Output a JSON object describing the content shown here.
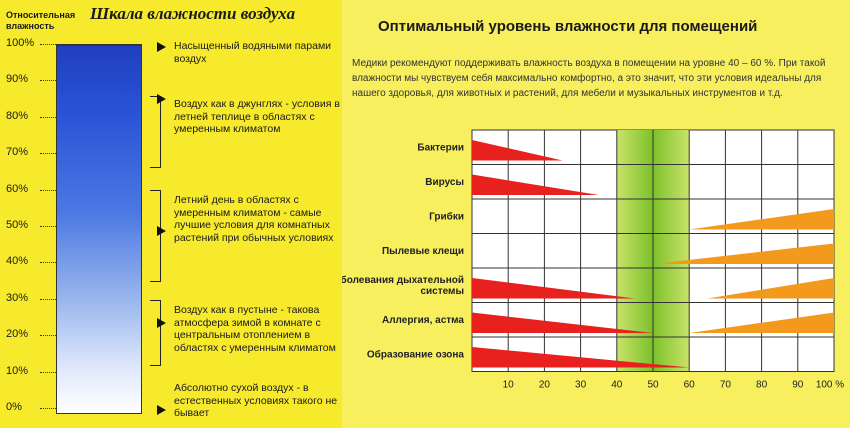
{
  "left": {
    "title": "Шкала влажности воздуха",
    "relative_label_1": "Относительная",
    "relative_label_2": "влажность",
    "ticks": [
      "100%",
      "90%",
      "80%",
      "70%",
      "60%",
      "50%",
      "40%",
      "30%",
      "20%",
      "10%",
      "0%"
    ],
    "descriptions": [
      "Насыщенный водяными парами воздух",
      "Воздух как в джунглях - условия в летней теплице в областях с умеренным климатом",
      "Летний день в областях с умеренным климатом - самые лучшие условия для комнатных растений при обычных условиях",
      "Воздух как в пустыне - такова атмосфера зимой в комнате с центральным отоплением в областях с умеренным климатом",
      "Абсолютно сухой воздух - в естественных условиях такого не бывает"
    ],
    "bar_top_percent": 100,
    "bar_color_top": "#1f3fbf"
  },
  "right": {
    "title": "Оптимальный уровень влажности для помещений",
    "intro": "Медики рекомендуют поддерживать влажность воздуха в помещении на уровне 40 – 60 %. При такой влажности мы чувствуем себя максимально комфортно, а это значит, что эти условия идеальны для нашего здоровья, для животных и растений, для мебели и музыкальных инструментов и т.д."
  },
  "chart_data": {
    "type": "table",
    "x_ticks": [
      "10",
      "20",
      "30",
      "40",
      "50",
      "60",
      "70",
      "80",
      "90",
      "100 %"
    ],
    "xlim": [
      0,
      100
    ],
    "optimal_range": [
      40,
      60
    ],
    "optimal_color": "#7cc12a",
    "low_color": "#e8201e",
    "high_color": "#f39a1d",
    "rows": [
      {
        "label": "Бактерии",
        "low": [
          0,
          25
        ],
        "high": null
      },
      {
        "label": "Вирусы",
        "low": [
          0,
          35
        ],
        "high": null
      },
      {
        "label": "Грибки",
        "low": null,
        "high": [
          60,
          100
        ]
      },
      {
        "label": "Пылевые клещи",
        "low": null,
        "high": [
          50,
          100
        ]
      },
      {
        "label": "Заболевания дыхательной системы",
        "low": [
          0,
          45
        ],
        "high": [
          65,
          100
        ]
      },
      {
        "label": "Аллергия, астма",
        "low": [
          0,
          50
        ],
        "high": [
          60,
          100
        ]
      },
      {
        "label": "Образование озона",
        "low": [
          0,
          60
        ],
        "high": null
      }
    ]
  }
}
